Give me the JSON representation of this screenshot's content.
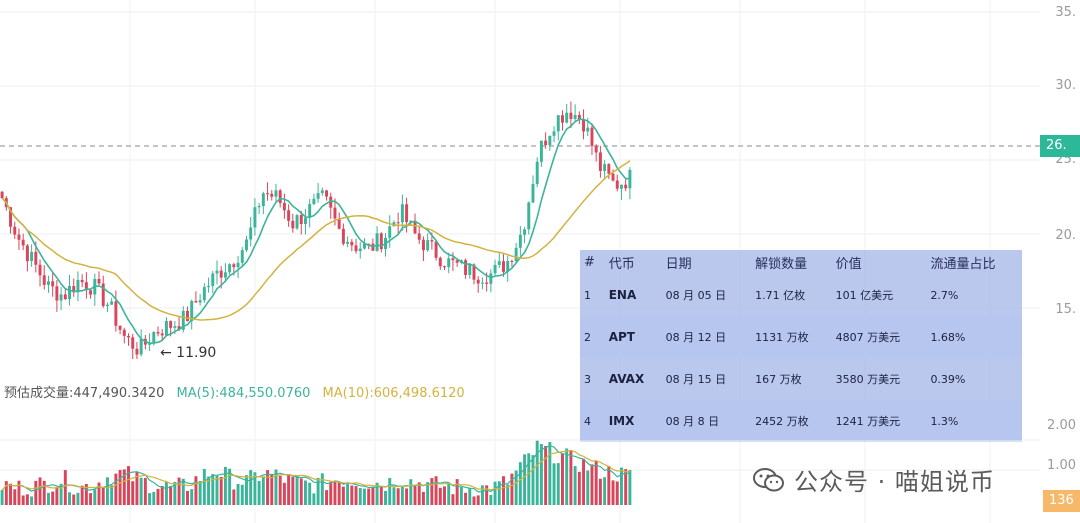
{
  "price_axis": {
    "labels": [
      "35.",
      "30.",
      "25.",
      "20.",
      "15."
    ],
    "current_price_tag": "26.",
    "reference_price": 26.1
  },
  "volume_axis": {
    "labels": [
      "2.00",
      "1.00"
    ],
    "current_volume_tag": "136"
  },
  "low_annotation": "← 11.90",
  "volume_legend": {
    "base": "预估成交量:447,490.3420",
    "ma5": "MA(5):484,550.0760",
    "ma10": "MA(10):606,498.6120"
  },
  "unlock_table": {
    "headers": [
      "#",
      "代币",
      "日期",
      "解锁数量",
      "价值",
      "流通量占比"
    ],
    "rows": [
      [
        "1",
        "ENA",
        "08 月 05 日",
        "1.71 亿枚",
        "101 亿美元",
        "2.7%"
      ],
      [
        "2",
        "APT",
        "08 月 12 日",
        "1131 万枚",
        "4807 万美元",
        "1.68%"
      ],
      [
        "3",
        "AVAX",
        "08 月 15 日",
        "167 万枚",
        "3580 万美元",
        "0.39%"
      ],
      [
        "4",
        "IMX",
        "08 月 8 日",
        "2452 万枚",
        "1241 万美元",
        "1.3%"
      ]
    ]
  },
  "watermark": {
    "text": "公众号 · 喵姐说币",
    "icon": "wechat-icon"
  },
  "colors": {
    "up": "#3bb59a",
    "down": "#d9465b",
    "ma_fast": "#3bb59a",
    "ma_slow": "#d4b240",
    "panel": "#a6b8e8"
  },
  "chart_data": {
    "type": "candlestick",
    "y_range": [
      10,
      36
    ],
    "price_path": [
      24.5,
      21.5,
      19.5,
      17.5,
      16.8,
      18,
      17.5,
      16,
      13.5,
      12.5,
      14,
      14.5,
      15,
      17,
      18.5,
      19.5,
      21,
      25,
      24.5,
      22.5,
      23.5,
      24.5,
      22,
      20.8,
      20.5,
      21.5,
      23.5,
      21.5,
      20.5,
      19.5,
      19,
      18.5,
      18.5,
      19.5,
      22,
      28,
      30.5,
      31.5,
      30.5,
      27,
      25.5,
      26.1
    ],
    "volume_path": [
      0.35,
      0.3,
      0.32,
      0.38,
      0.45,
      0.3,
      0.35,
      0.5,
      0.55,
      0.42,
      0.35,
      0.3,
      0.32,
      0.5,
      0.6,
      0.45,
      0.4,
      0.55,
      0.5,
      0.4,
      0.35,
      0.38,
      0.45,
      0.42,
      0.4,
      0.38,
      0.45,
      0.4,
      0.35,
      0.32,
      0.3,
      0.3,
      0.28,
      0.4,
      0.7,
      1.0,
      0.9,
      0.8,
      0.7,
      0.6,
      0.55,
      0.5
    ],
    "low_point": 11.9
  }
}
